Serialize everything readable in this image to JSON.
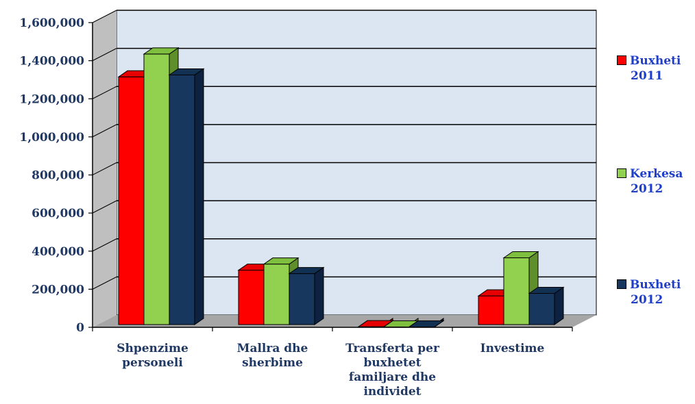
{
  "chart_data": {
    "type": "bar",
    "categories": [
      [
        "Shpenzime",
        "personeli"
      ],
      [
        "Mallra dhe",
        "sherbime"
      ],
      [
        "Transferta per",
        "buxhetet",
        "familjare dhe",
        "individet"
      ],
      [
        "Investime"
      ]
    ],
    "series": [
      {
        "name": "Buxheti 2011",
        "name_lines": [
          "Buxheti",
          "2011"
        ],
        "color": "#ff0000",
        "side": "#b00000",
        "top": "#e60000",
        "values": [
          1315000,
          300000,
          3000,
          165000
        ]
      },
      {
        "name": "Kerkesa 2012",
        "name_lines": [
          "Kerkesa",
          "2012"
        ],
        "color": "#92d050",
        "side": "#5f8f2a",
        "top": "#7fbf40",
        "values": [
          1435000,
          332000,
          2000,
          365000
        ]
      },
      {
        "name": "Buxheti 2012",
        "name_lines": [
          "Buxheti",
          "2012"
        ],
        "color": "#17375e",
        "side": "#0d2240",
        "top": "#123052",
        "values": [
          1325000,
          282000,
          2000,
          178000
        ]
      }
    ],
    "yticks": [
      "0",
      "200,000",
      "400,000",
      "600,000",
      "800,000",
      "1,000,000",
      "1,200,000",
      "1,400,000",
      "1,600,000"
    ],
    "ylim": [
      0,
      1600000
    ],
    "grid": true,
    "legend_position": "right",
    "colors": {
      "wall": "#dce6f2",
      "floor": "#a6a6a6",
      "leftwall": "#bfbfbf",
      "axis_text": "#1f3864",
      "legend_text": "#1f3fc8"
    }
  }
}
